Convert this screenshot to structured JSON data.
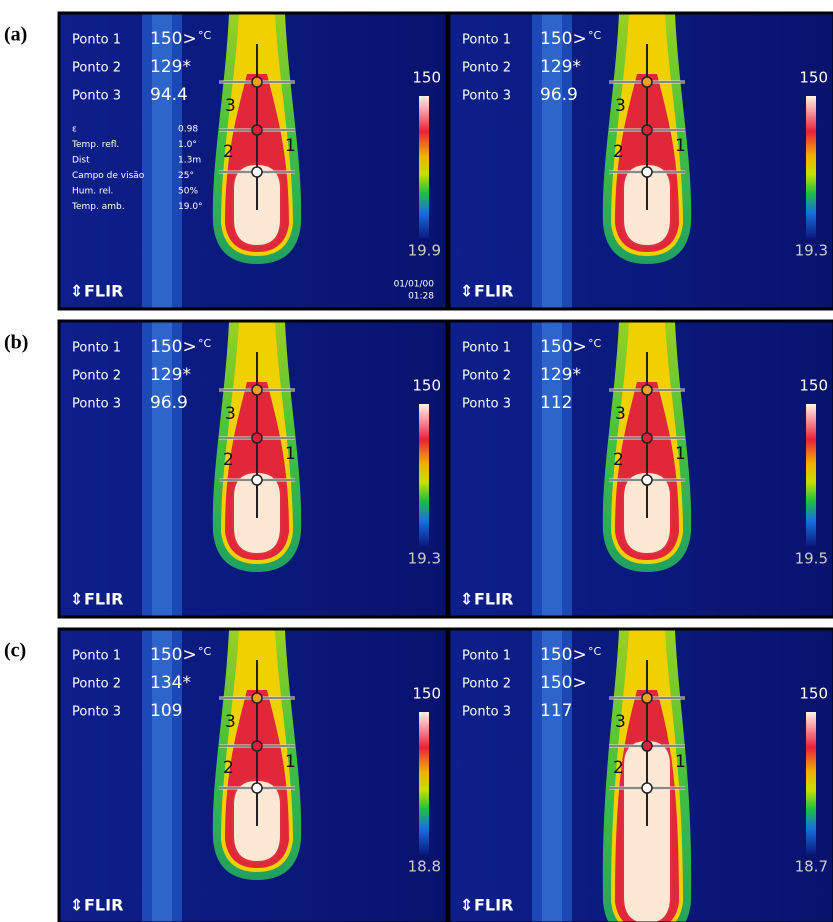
{
  "rows": [
    {
      "label": "(a)",
      "panels": [
        {
          "readings": [
            {
              "name": "Ponto 1",
              "value": "150>",
              "unit": "°C"
            },
            {
              "name": "Ponto 2",
              "value": "129*"
            },
            {
              "name": "Ponto 3",
              "value": "94.4"
            }
          ],
          "params": [
            {
              "name": "ε",
              "value": "0.98"
            },
            {
              "name": "Temp. refl.",
              "value": "1.0°"
            },
            {
              "name": "Dist",
              "value": "1.3m"
            },
            {
              "name": "Campo de visão",
              "value": "25°"
            },
            {
              "name": "Hum. rel.",
              "value": "50%"
            },
            {
              "name": "Temp. amb.",
              "value": "19.0°"
            }
          ],
          "scale_max": "150",
          "scale_min": "19.9",
          "markers": [
            "1",
            "2",
            "3"
          ],
          "logo": "FLIR",
          "date": "01/01/00",
          "time": "01:28"
        },
        {
          "readings": [
            {
              "name": "Ponto 1",
              "value": "150>",
              "unit": "°C"
            },
            {
              "name": "Ponto 2",
              "value": "129*"
            },
            {
              "name": "Ponto 3",
              "value": "96.9"
            }
          ],
          "scale_max": "150",
          "scale_min": "19.3",
          "markers": [
            "1",
            "2",
            "3"
          ],
          "logo": "FLIR"
        }
      ]
    },
    {
      "label": "(b)",
      "panels": [
        {
          "readings": [
            {
              "name": "Ponto 1",
              "value": "150>",
              "unit": "°C"
            },
            {
              "name": "Ponto 2",
              "value": "129*"
            },
            {
              "name": "Ponto 3",
              "value": "96.9"
            }
          ],
          "scale_max": "150",
          "scale_min": "19.3",
          "markers": [
            "1",
            "2",
            "3"
          ],
          "logo": "FLIR"
        },
        {
          "readings": [
            {
              "name": "Ponto 1",
              "value": "150>",
              "unit": "°C"
            },
            {
              "name": "Ponto 2",
              "value": "129*"
            },
            {
              "name": "Ponto 3",
              "value": "112"
            }
          ],
          "scale_max": "150",
          "scale_min": "19.5",
          "markers": [
            "1",
            "2",
            "3"
          ],
          "logo": "FLIR"
        }
      ]
    },
    {
      "label": "(c)",
      "panels": [
        {
          "readings": [
            {
              "name": "Ponto 1",
              "value": "150>",
              "unit": "°C"
            },
            {
              "name": "Ponto 2",
              "value": "134*"
            },
            {
              "name": "Ponto 3",
              "value": "109"
            }
          ],
          "scale_max": "150",
          "scale_min": "18.8",
          "markers": [
            "1",
            "2",
            "3"
          ],
          "logo": "FLIR"
        },
        {
          "readings": [
            {
              "name": "Ponto 1",
              "value": "150>",
              "unit": "°C"
            },
            {
              "name": "Ponto 2",
              "value": "150>"
            },
            {
              "name": "Ponto 3",
              "value": "117"
            }
          ],
          "scale_max": "150",
          "scale_min": "18.7",
          "markers": [
            "1",
            "2",
            "3"
          ],
          "logo": "FLIR"
        }
      ]
    }
  ]
}
